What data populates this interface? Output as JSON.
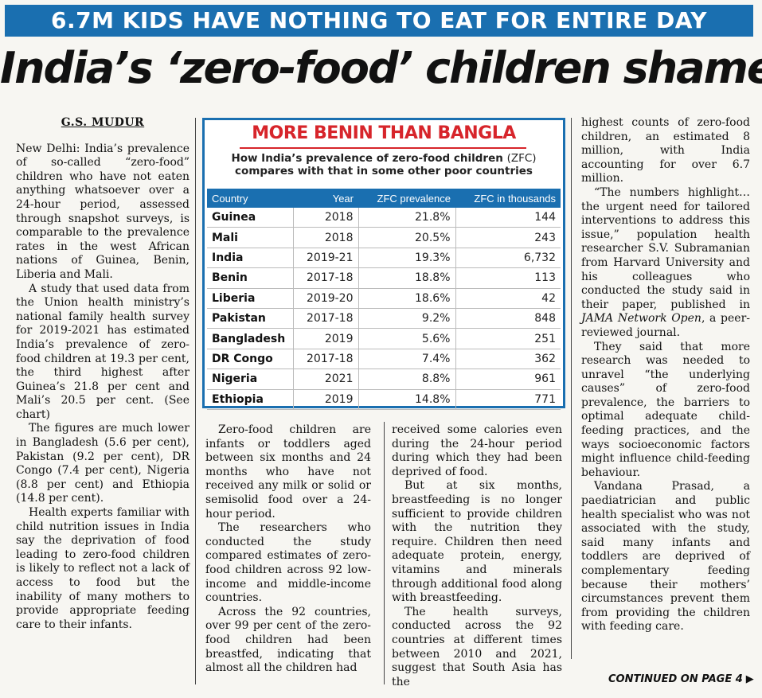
{
  "kicker": "6.7M KIDS HAVE NOTHING TO EAT FOR ENTIRE DAY",
  "headline": "India’s ‘zero-food’ children shame",
  "byline": "G.S. MUDUR",
  "col1": {
    "p1": "New Delhi: India’s prevalence of so-called “zero-food” children who have not eaten anything whatsoever over a 24-hour period, assessed through snapshot surveys, is comparable to the prevalence rates in the west African nations of Guinea, Benin, Liberia and Mali.",
    "p2": "A study that used data from the Union health ministry’s national family health survey for 2019-2021 has estimated India’s prevalence of zero-food children at 19.3 per cent, the third highest after Guinea’s 21.8 per cent and Mali’s 20.5 per cent. (See chart)",
    "p3": "The figures are much lower in Bangladesh (5.6 per cent), Pakistan (9.2 per cent), DR Congo (7.4 per cent), Nigeria (8.8 per cent) and Ethiopia (14.8 per cent).",
    "p4": "Health experts familiar with child nutrition issues in India say the deprivation of food leading to zero-food children is likely to reflect not a lack of access to food but the inability of many mothers to provide appropriate feeding care to their infants."
  },
  "col2": {
    "p1": "Zero-food children are infants or toddlers aged between six months and 24 months who have not received any milk or solid or semisolid food over a 24-hour period.",
    "p2": "The researchers who conducted the study compared estimates of zero-food children across 92 low-income and middle-income countries.",
    "p3": "Across the 92 countries, over 99 per cent of the zero-food children had been breastfed, indicating that almost all the children had"
  },
  "col3": {
    "p1": "received some calories even during the 24-hour period during which they had been deprived of food.",
    "p2": "But at six months, breastfeeding is no longer sufficient to provide children with the nutrition they require. Children then need adequate protein, energy, vitamins and minerals through additional food along with breastfeeding.",
    "p3": "The health surveys, conducted across the 92 countries at different times between 2010 and 2021, suggest that South Asia has the"
  },
  "col4": {
    "p1": "highest counts of zero-food children, an estimated 8 million, with India accounting for over 6.7 million.",
    "p2a": "“The numbers highlight… the urgent need for tailored interventions to address this issue,” population health researcher S.V. Subramanian from Harvard University and his colleagues who conducted the study said in their paper, published in ",
    "p2_journal": "JAMA Network Open",
    "p2b": ", a peer-reviewed journal.",
    "p3": "They said that more research was needed to unravel “the underlying causes” of zero-food prevalence, the barriers to optimal adequate child-feeding practices, and the ways socioeconomic factors might influence child-feeding behaviour.",
    "p4": "Vandana Prasad, a paediatrician and public health specialist who was not associated with the study, said many infants and toddlers are deprived of complementary feeding because their mothers’ circumstances prevent them from providing the children with feeding care."
  },
  "continued": "CONTINUED ON PAGE 4",
  "chart_data": {
    "type": "table",
    "title": "MORE BENIN THAN BANGLA",
    "subtitle_a": "How India’s prevalence of zero-food children ",
    "subtitle_abbr": "(ZFC)",
    "subtitle_b": "compares with that in some other poor countries",
    "columns": [
      "Country",
      "Year",
      "ZFC prevalence",
      "ZFC in thousands"
    ],
    "rows": [
      [
        "Guinea",
        "2018",
        "21.8%",
        "144"
      ],
      [
        "Mali",
        "2018",
        "20.5%",
        "243"
      ],
      [
        "India",
        "2019-21",
        "19.3%",
        "6,732"
      ],
      [
        "Benin",
        "2017-18",
        "18.8%",
        "113"
      ],
      [
        "Liberia",
        "2019-20",
        "18.6%",
        "42"
      ],
      [
        "Pakistan",
        "2017-18",
        "9.2%",
        "848"
      ],
      [
        "Bangladesh",
        "2019",
        "5.6%",
        "251"
      ],
      [
        "DR Congo",
        "2017-18",
        "7.4%",
        "362"
      ],
      [
        "Nigeria",
        "2021",
        "8.8%",
        "961"
      ],
      [
        "Ethiopia",
        "2019",
        "14.8%",
        "771"
      ]
    ],
    "colors": {
      "accent": "#1a6fb0",
      "title": "#d7252b"
    }
  }
}
